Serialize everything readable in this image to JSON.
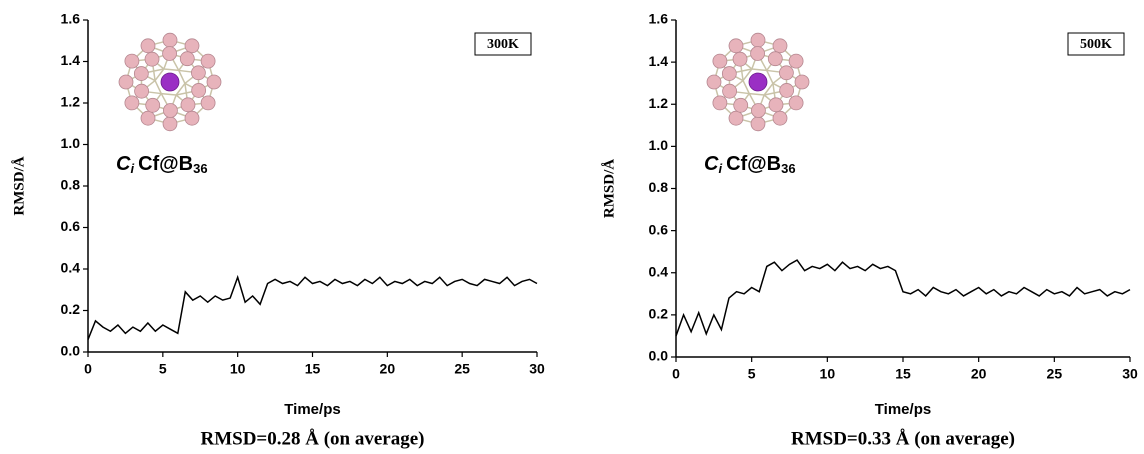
{
  "chart_data": [
    {
      "type": "line",
      "temperature": "300K",
      "caption": "RMSD=0.28 Å (on average)",
      "xlabel": "Time/ps",
      "ylabel": "RMSD/Å",
      "annotation": {
        "italic": "C",
        "sub": "i",
        "main": "Cf@B",
        "sub2": "36"
      },
      "xlim": [
        0,
        30
      ],
      "xticks": [
        0,
        5,
        10,
        15,
        20,
        25,
        30
      ],
      "ylim": [
        0,
        1.6
      ],
      "yticks": [
        {
          "value": 0,
          "label": "0.0"
        },
        0.2,
        0.4,
        0.6,
        0.8,
        {
          "value": 1,
          "label": "1.0"
        },
        1.2,
        1.4,
        1.6
      ],
      "x": [
        0,
        0.5,
        1,
        1.5,
        2,
        2.5,
        3,
        3.5,
        4,
        4.5,
        5,
        5.5,
        6,
        6.5,
        7,
        7.5,
        8,
        8.5,
        9,
        9.5,
        10,
        10.5,
        11,
        11.5,
        12,
        12.5,
        13,
        13.5,
        14,
        14.5,
        15,
        15.5,
        16,
        16.5,
        17,
        17.5,
        18,
        18.5,
        19,
        19.5,
        20,
        20.5,
        21,
        21.5,
        22,
        22.5,
        23,
        23.5,
        24,
        24.5,
        25,
        25.5,
        26,
        26.5,
        27,
        27.5,
        28,
        28.5,
        29,
        29.5,
        30
      ],
      "series": [
        {
          "color": "#000000",
          "values": [
            0.06,
            0.15,
            0.12,
            0.1,
            0.13,
            0.09,
            0.12,
            0.1,
            0.14,
            0.1,
            0.13,
            0.11,
            0.09,
            0.29,
            0.25,
            0.27,
            0.24,
            0.27,
            0.25,
            0.26,
            0.36,
            0.24,
            0.27,
            0.23,
            0.33,
            0.35,
            0.33,
            0.34,
            0.32,
            0.36,
            0.33,
            0.34,
            0.32,
            0.35,
            0.33,
            0.34,
            0.32,
            0.35,
            0.33,
            0.36,
            0.32,
            0.34,
            0.33,
            0.35,
            0.32,
            0.34,
            0.33,
            0.36,
            0.32,
            0.34,
            0.35,
            0.33,
            0.32,
            0.35,
            0.34,
            0.33,
            0.36,
            0.32,
            0.34,
            0.35,
            0.33
          ]
        }
      ]
    },
    {
      "type": "line",
      "temperature": "500K",
      "caption": "RMSD=0.33 Å (on average)",
      "xlabel": "Time/ps",
      "ylabel": "RMSD/Å",
      "annotation": {
        "italic": "C",
        "sub": "i",
        "main": "Cf@B",
        "sub2": "36"
      },
      "xlim": [
        0,
        30
      ],
      "xticks": [
        0,
        5,
        10,
        15,
        20,
        25,
        30
      ],
      "ylim": [
        0,
        1.6
      ],
      "yticks": [
        {
          "value": 0,
          "label": "0.0"
        },
        0.2,
        0.4,
        0.6,
        0.8,
        {
          "value": 1,
          "label": "1.0"
        },
        1.2,
        1.4,
        1.6
      ],
      "x": [
        0,
        0.5,
        1,
        1.5,
        2,
        2.5,
        3,
        3.5,
        4,
        4.5,
        5,
        5.5,
        6,
        6.5,
        7,
        7.5,
        8,
        8.5,
        9,
        9.5,
        10,
        10.5,
        11,
        11.5,
        12,
        12.5,
        13,
        13.5,
        14,
        14.5,
        15,
        15.5,
        16,
        16.5,
        17,
        17.5,
        18,
        18.5,
        19,
        19.5,
        20,
        20.5,
        21,
        21.5,
        22,
        22.5,
        23,
        23.5,
        24,
        24.5,
        25,
        25.5,
        26,
        26.5,
        27,
        27.5,
        28,
        28.5,
        29,
        29.5,
        30
      ],
      "series": [
        {
          "color": "#000000",
          "values": [
            0.1,
            0.2,
            0.12,
            0.21,
            0.11,
            0.2,
            0.13,
            0.28,
            0.31,
            0.3,
            0.33,
            0.31,
            0.43,
            0.45,
            0.41,
            0.44,
            0.46,
            0.41,
            0.43,
            0.42,
            0.44,
            0.41,
            0.45,
            0.42,
            0.43,
            0.41,
            0.44,
            0.42,
            0.43,
            0.41,
            0.31,
            0.3,
            0.32,
            0.29,
            0.33,
            0.31,
            0.3,
            0.32,
            0.29,
            0.31,
            0.33,
            0.3,
            0.32,
            0.29,
            0.31,
            0.3,
            0.33,
            0.31,
            0.29,
            0.32,
            0.3,
            0.31,
            0.29,
            0.33,
            0.3,
            0.31,
            0.32,
            0.29,
            0.31,
            0.3,
            0.32
          ]
        }
      ]
    }
  ]
}
